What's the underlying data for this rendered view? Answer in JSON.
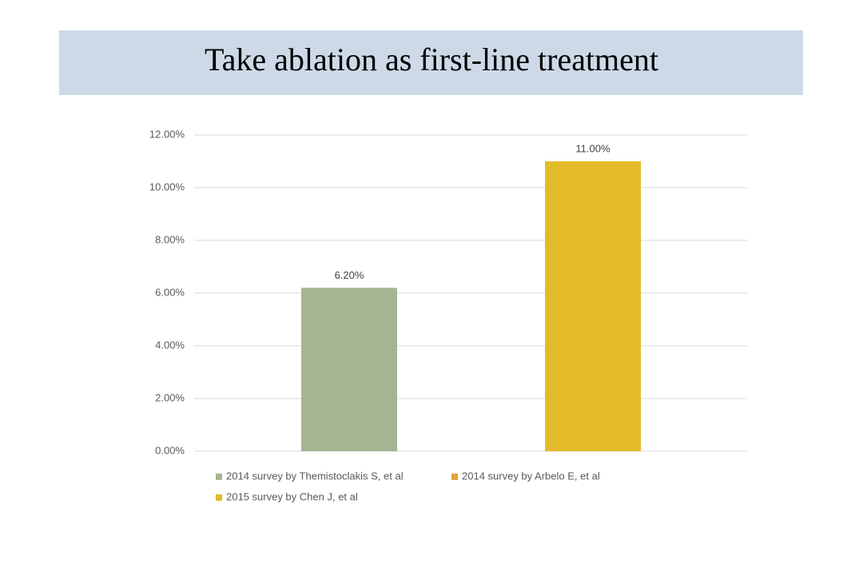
{
  "chart_data": {
    "type": "bar",
    "title": "Take ablation as first-line treatment",
    "series": [
      {
        "name": "2014 survey by Themistoclakis S, et al",
        "color": "#a6b591",
        "values": [
          6.2
        ],
        "value_labels": [
          "6.20%"
        ]
      },
      {
        "name": "2014 survey by Arbelo E, et al",
        "color": "#e3a23d",
        "values": [
          null
        ],
        "value_labels": [
          null
        ]
      },
      {
        "name": "2015 survey by Chen J, et al",
        "color": "#e3bb2a",
        "values": [
          11.0
        ],
        "value_labels": [
          "11.00%"
        ]
      }
    ],
    "ylim": [
      0,
      12
    ],
    "yticks": [
      {
        "value": 0,
        "label": "0.00%"
      },
      {
        "value": 2,
        "label": "2.00%"
      },
      {
        "value": 4,
        "label": "4.00%"
      },
      {
        "value": 6,
        "label": "6.00%"
      },
      {
        "value": 8,
        "label": "8.00%"
      },
      {
        "value": 10,
        "label": "10.00%"
      },
      {
        "value": 12,
        "label": "12.00%"
      }
    ],
    "grid": true
  }
}
